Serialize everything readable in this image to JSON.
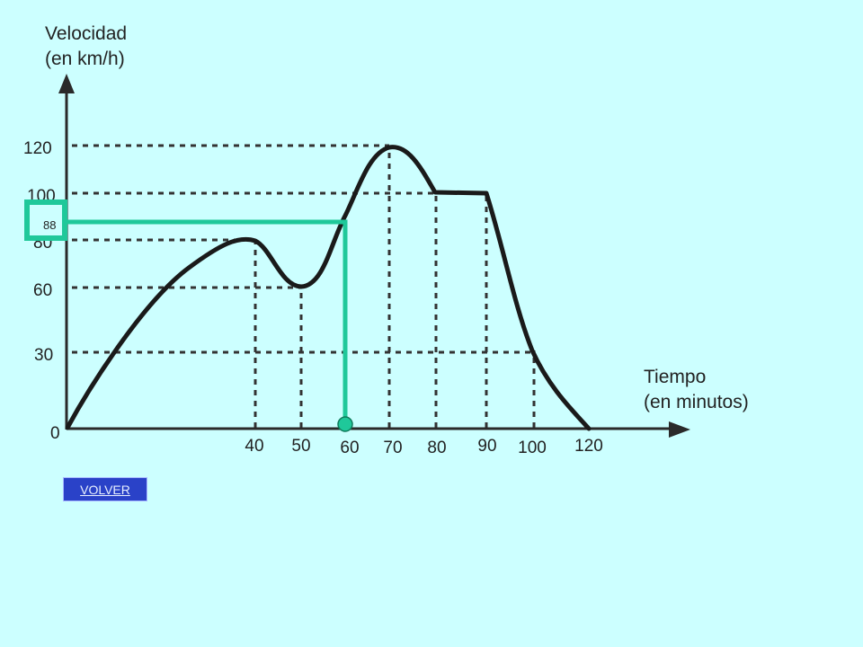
{
  "chart_data": {
    "type": "line",
    "ylabel": [
      "Velocidad",
      "(en km/h)"
    ],
    "xlabel": [
      "Tiempo",
      "(en minutos)"
    ],
    "origin_label": "0",
    "yticks": [
      "30",
      "60",
      "80",
      "100",
      "120"
    ],
    "xticks": [
      "40",
      "50",
      "60",
      "70",
      "80",
      "90",
      "100",
      "120"
    ],
    "series": [
      {
        "x": [
          0,
          40,
          50,
          70,
          80,
          90,
          100,
          120
        ],
        "y": [
          0,
          80,
          60,
          120,
          100,
          100,
          30,
          0
        ]
      }
    ],
    "highlight": {
      "x": "60",
      "y": "88"
    },
    "colors": {
      "line": "#1a1a1a",
      "highlight": "#1fc89a",
      "grid": "#333333"
    }
  },
  "button": {
    "label": "VOLVER"
  }
}
